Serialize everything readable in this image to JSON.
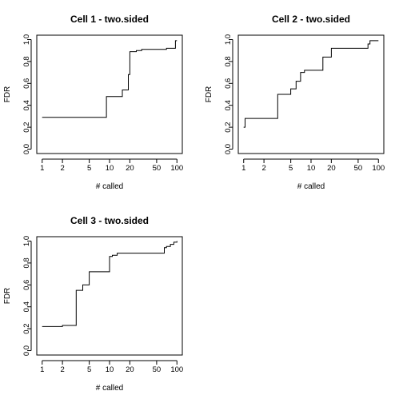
{
  "chart_data": [
    {
      "type": "line",
      "step": true,
      "title": "Cell 1 - two.sided",
      "xlabel": "# called",
      "ylabel": "FDR",
      "xscale": "log",
      "xlim": [
        1,
        100
      ],
      "ylim": [
        0,
        1
      ],
      "xticks": [
        "1",
        "2",
        "5",
        "10",
        "20",
        "50",
        "100"
      ],
      "yticks": [
        "0.0",
        "0.2",
        "0.4",
        "0.6",
        "0.8",
        "1.0"
      ],
      "x": [
        1,
        2,
        3,
        5,
        8.9,
        9,
        15,
        15.5,
        18,
        19,
        20,
        25,
        30,
        40,
        60,
        70,
        80,
        90,
        95,
        100
      ],
      "y": [
        0.29,
        0.29,
        0.29,
        0.29,
        0.29,
        0.48,
        0.48,
        0.54,
        0.54,
        0.68,
        0.89,
        0.9,
        0.91,
        0.91,
        0.91,
        0.92,
        0.92,
        0.92,
        0.99,
        0.99
      ]
    },
    {
      "type": "line",
      "step": true,
      "title": "Cell 2 - two.sided",
      "xlabel": "# called",
      "ylabel": "FDR",
      "xscale": "log",
      "xlim": [
        1,
        100
      ],
      "ylim": [
        0,
        1
      ],
      "xticks": [
        "1",
        "2",
        "5",
        "10",
        "20",
        "50",
        "100"
      ],
      "yticks": [
        "0.0",
        "0.2",
        "0.4",
        "0.6",
        "0.8",
        "1.0"
      ],
      "x": [
        1,
        1.05,
        2,
        3.2,
        4,
        4.3,
        5,
        6,
        7,
        8,
        10,
        12,
        15,
        18,
        20,
        50,
        70,
        75,
        100
      ],
      "y": [
        0.2,
        0.28,
        0.28,
        0.5,
        0.5,
        0.5,
        0.55,
        0.62,
        0.7,
        0.72,
        0.72,
        0.72,
        0.84,
        0.84,
        0.92,
        0.92,
        0.96,
        0.99,
        0.99
      ]
    },
    {
      "type": "line",
      "step": true,
      "title": "Cell 3 - two.sided",
      "xlabel": "# called",
      "ylabel": "FDR",
      "xscale": "log",
      "xlim": [
        1,
        100
      ],
      "ylim": [
        0,
        1
      ],
      "xticks": [
        "1",
        "2",
        "5",
        "10",
        "20",
        "50",
        "100"
      ],
      "yticks": [
        "0.0",
        "0.2",
        "0.4",
        "0.6",
        "0.8",
        "1.0"
      ],
      "x": [
        1,
        2,
        3.2,
        4,
        5,
        10,
        11,
        13,
        15,
        20,
        60,
        65,
        70,
        80,
        90,
        100
      ],
      "y": [
        0.22,
        0.23,
        0.55,
        0.6,
        0.72,
        0.86,
        0.87,
        0.89,
        0.89,
        0.89,
        0.89,
        0.94,
        0.95,
        0.97,
        0.99,
        1.0
      ]
    }
  ]
}
